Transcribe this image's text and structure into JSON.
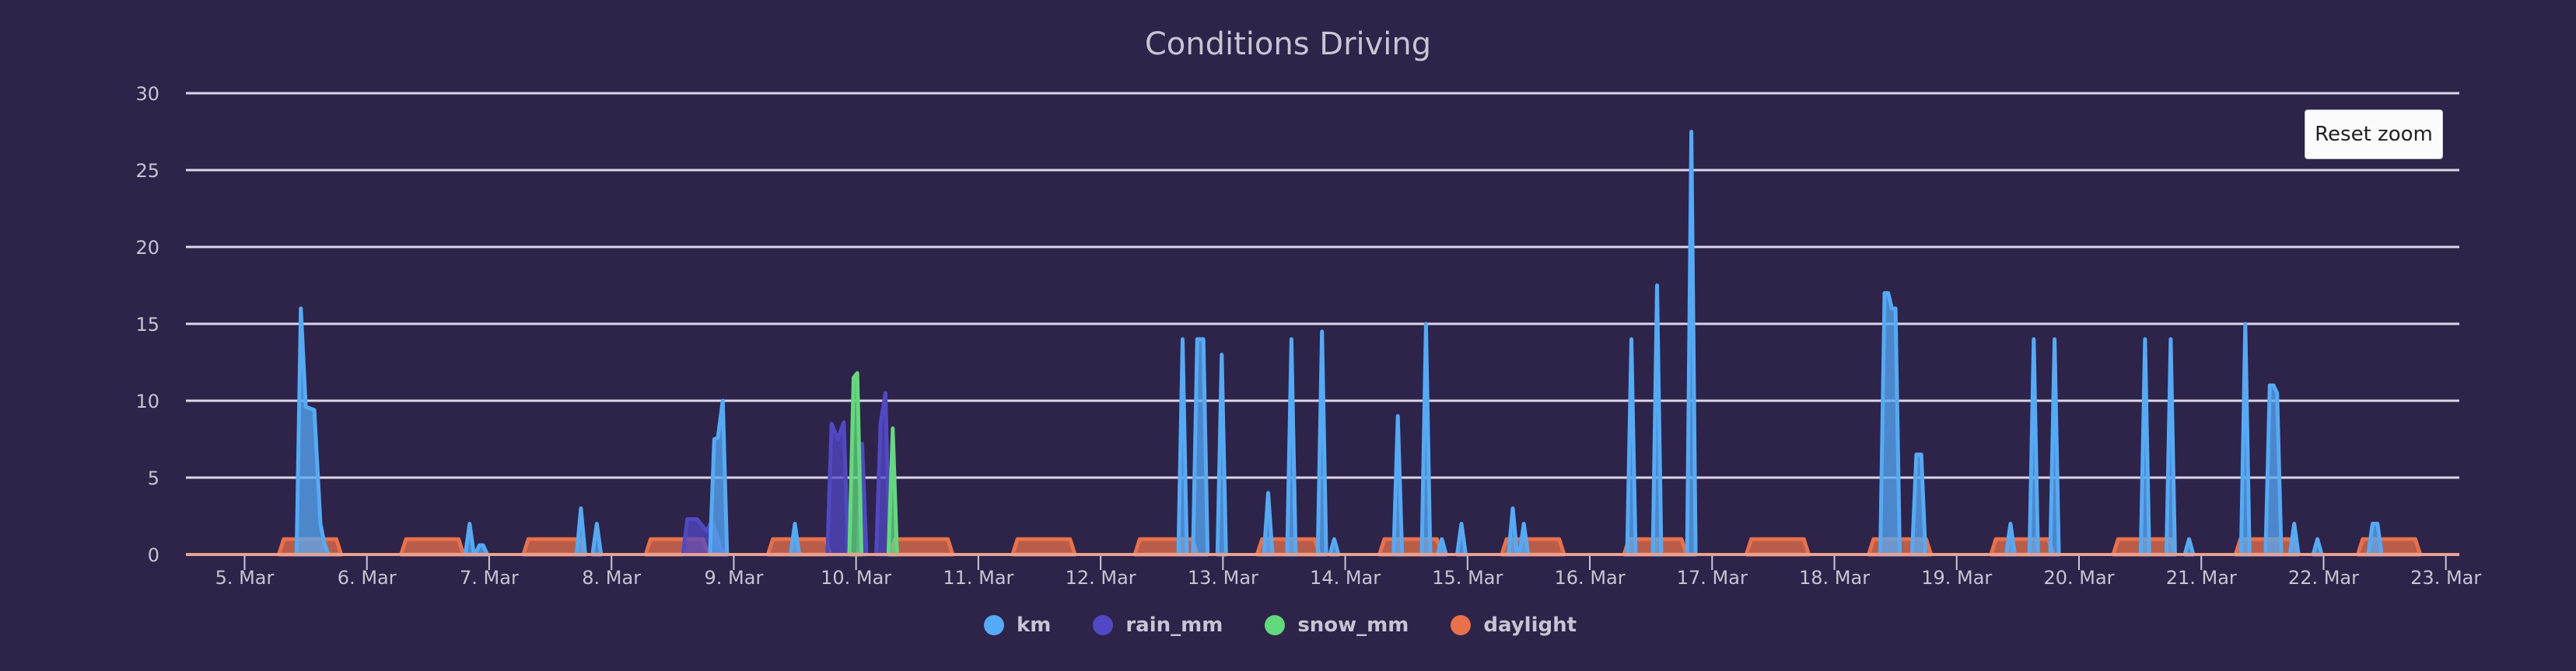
{
  "chart_data": {
    "type": "area",
    "title": "Conditions Driving",
    "xlabel": "",
    "ylabel": "",
    "ylim": [
      0,
      30
    ],
    "xlim_day_of_march": [
      4.52,
      23.11
    ],
    "y_ticks": [
      "0",
      "5",
      "10",
      "15",
      "20",
      "25",
      "30"
    ],
    "x_ticks": [
      "5. Mar",
      "6. Mar",
      "7. Mar",
      "8. Mar",
      "9. Mar",
      "10. Mar",
      "11. Mar",
      "12. Mar",
      "13. Mar",
      "14. Mar",
      "15. Mar",
      "16. Mar",
      "17. Mar",
      "18. Mar",
      "19. Mar",
      "20. Mar",
      "21. Mar",
      "22. Mar",
      "23. Mar"
    ],
    "grid": true,
    "legend_position": "bottom-center",
    "series": [
      {
        "name": "rain_mm",
        "color": "#5148c4",
        "segments": [
          [
            [
              8.62,
              2.3
            ],
            [
              8.7,
              2.3
            ],
            [
              8.78,
              1.5
            ],
            [
              8.82,
              2.2
            ],
            [
              8.9,
              0.3
            ]
          ],
          [
            [
              9.8,
              8.5
            ],
            [
              9.85,
              7.5
            ],
            [
              9.9,
              8.6
            ]
          ],
          [
            [
              10.05,
              7.2
            ]
          ],
          [
            [
              10.2,
              8.5
            ],
            [
              10.24,
              10.5
            ]
          ]
        ]
      },
      {
        "name": "snow_mm",
        "color": "#62d97c",
        "segments": [
          [
            [
              9.98,
              11.5
            ],
            [
              10.01,
              11.8
            ]
          ],
          [
            [
              10.3,
              8.2
            ]
          ]
        ]
      },
      {
        "name": "km",
        "color": "#55aaf5",
        "segments": [
          [
            [
              5.46,
              16
            ],
            [
              5.5,
              9.6
            ],
            [
              5.57,
              9.4
            ],
            [
              5.62,
              2
            ],
            [
              5.65,
              0.8
            ]
          ],
          [
            [
              6.84,
              2
            ]
          ],
          [
            [
              6.92,
              0.6
            ],
            [
              6.95,
              0.6
            ]
          ],
          [
            [
              7.75,
              3
            ]
          ],
          [
            [
              7.88,
              2
            ]
          ],
          [
            [
              8.84,
              7.5
            ],
            [
              8.87,
              7.6
            ],
            [
              8.91,
              10
            ]
          ],
          [
            [
              9.5,
              2
            ]
          ],
          [
            [
              12.67,
              14
            ]
          ],
          [
            [
              12.79,
              14
            ],
            [
              12.84,
              14
            ]
          ],
          [
            [
              12.99,
              13
            ]
          ],
          [
            [
              13.37,
              4
            ]
          ],
          [
            [
              13.56,
              14
            ]
          ],
          [
            [
              13.81,
              14.5
            ]
          ],
          [
            [
              13.91,
              1
            ]
          ],
          [
            [
              14.43,
              9
            ]
          ],
          [
            [
              14.66,
              15
            ]
          ],
          [
            [
              14.79,
              1
            ]
          ],
          [
            [
              14.95,
              2
            ]
          ],
          [
            [
              15.37,
              3
            ]
          ],
          [
            [
              15.46,
              2
            ]
          ],
          [
            [
              16.34,
              14
            ]
          ],
          [
            [
              16.55,
              17.5
            ]
          ],
          [
            [
              16.83,
              27.5
            ]
          ],
          [
            [
              18.41,
              17
            ],
            [
              18.44,
              17
            ],
            [
              18.47,
              16
            ],
            [
              18.5,
              16
            ]
          ],
          [
            [
              18.67,
              6.5
            ],
            [
              18.71,
              6.5
            ]
          ],
          [
            [
              19.44,
              2
            ]
          ],
          [
            [
              19.63,
              14
            ]
          ],
          [
            [
              19.8,
              14
            ]
          ],
          [
            [
              20.54,
              14
            ]
          ],
          [
            [
              20.75,
              14
            ]
          ],
          [
            [
              20.9,
              1
            ]
          ],
          [
            [
              21.36,
              15
            ]
          ],
          [
            [
              21.56,
              11
            ],
            [
              21.59,
              11
            ],
            [
              21.62,
              10.5
            ]
          ],
          [
            [
              21.76,
              2
            ]
          ],
          [
            [
              21.95,
              1
            ]
          ],
          [
            [
              22.4,
              2
            ],
            [
              22.44,
              2
            ]
          ]
        ]
      },
      {
        "name": "daylight",
        "color": "#e8704a",
        "days": [
          5,
          6,
          7,
          8,
          9,
          10,
          11,
          12,
          13,
          14,
          15,
          16,
          17,
          18,
          19,
          20,
          21,
          22
        ],
        "sunrise_frac": 0.28,
        "sunset_frac": 0.79,
        "value": 1
      }
    ]
  },
  "ui": {
    "reset_zoom_label": "Reset zoom"
  }
}
